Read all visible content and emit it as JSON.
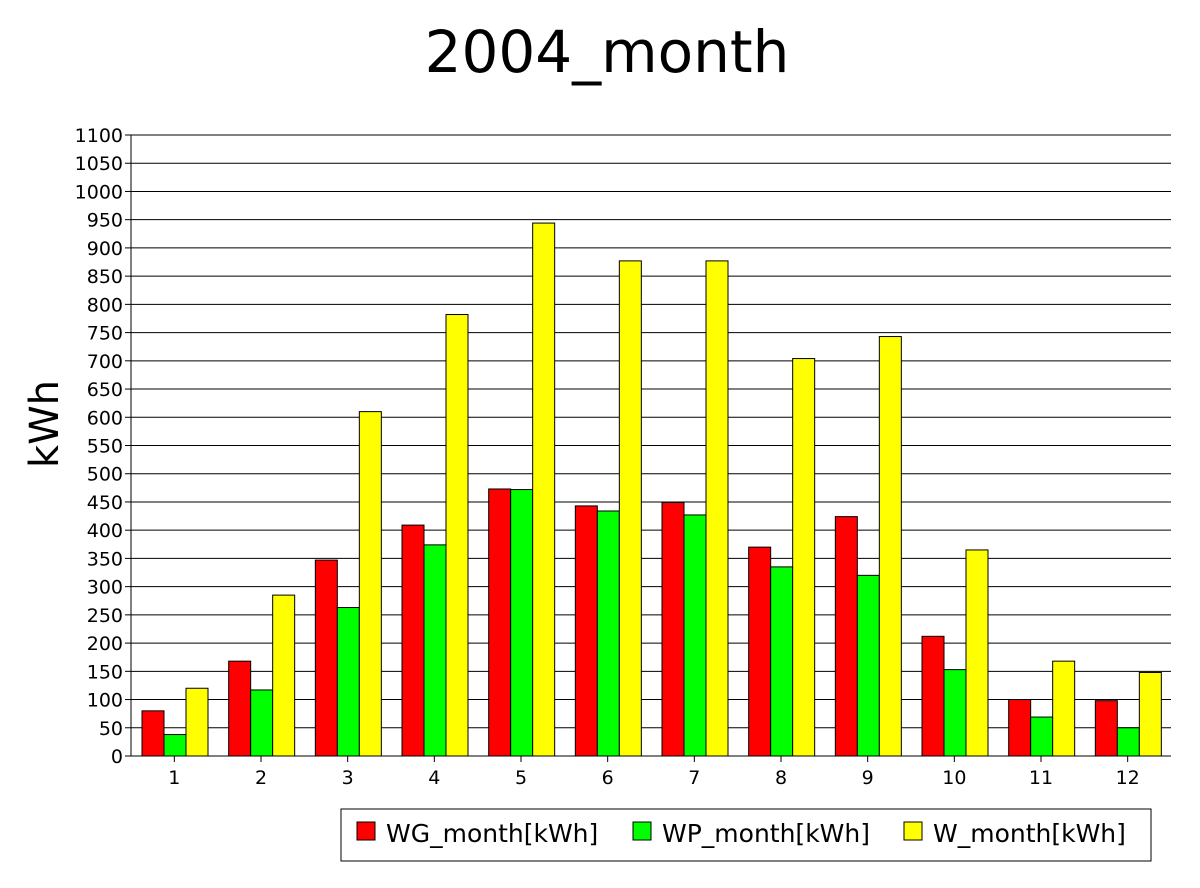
{
  "chart_data": {
    "type": "bar",
    "title": "2004_month",
    "xlabel": "",
    "ylabel": "kWh",
    "ylim": [
      0,
      1100
    ],
    "ytick_step": 50,
    "grid": true,
    "legend_position": "bottom-right",
    "categories": [
      "1",
      "2",
      "3",
      "4",
      "5",
      "6",
      "7",
      "8",
      "9",
      "10",
      "11",
      "12"
    ],
    "series": [
      {
        "name": "WG_month[kWh]",
        "color": "#ff0000",
        "values": [
          80,
          168,
          347,
          409,
          473,
          443,
          449,
          370,
          424,
          212,
          100,
          98
        ]
      },
      {
        "name": "WP_month[kWh]",
        "color": "#00ff00",
        "values": [
          38,
          117,
          263,
          374,
          472,
          434,
          427,
          335,
          320,
          153,
          69,
          50
        ]
      },
      {
        "name": "W_month[kWh]",
        "color": "#ffff00",
        "values": [
          120,
          285,
          610,
          782,
          944,
          877,
          877,
          704,
          743,
          365,
          168,
          148
        ]
      }
    ]
  }
}
